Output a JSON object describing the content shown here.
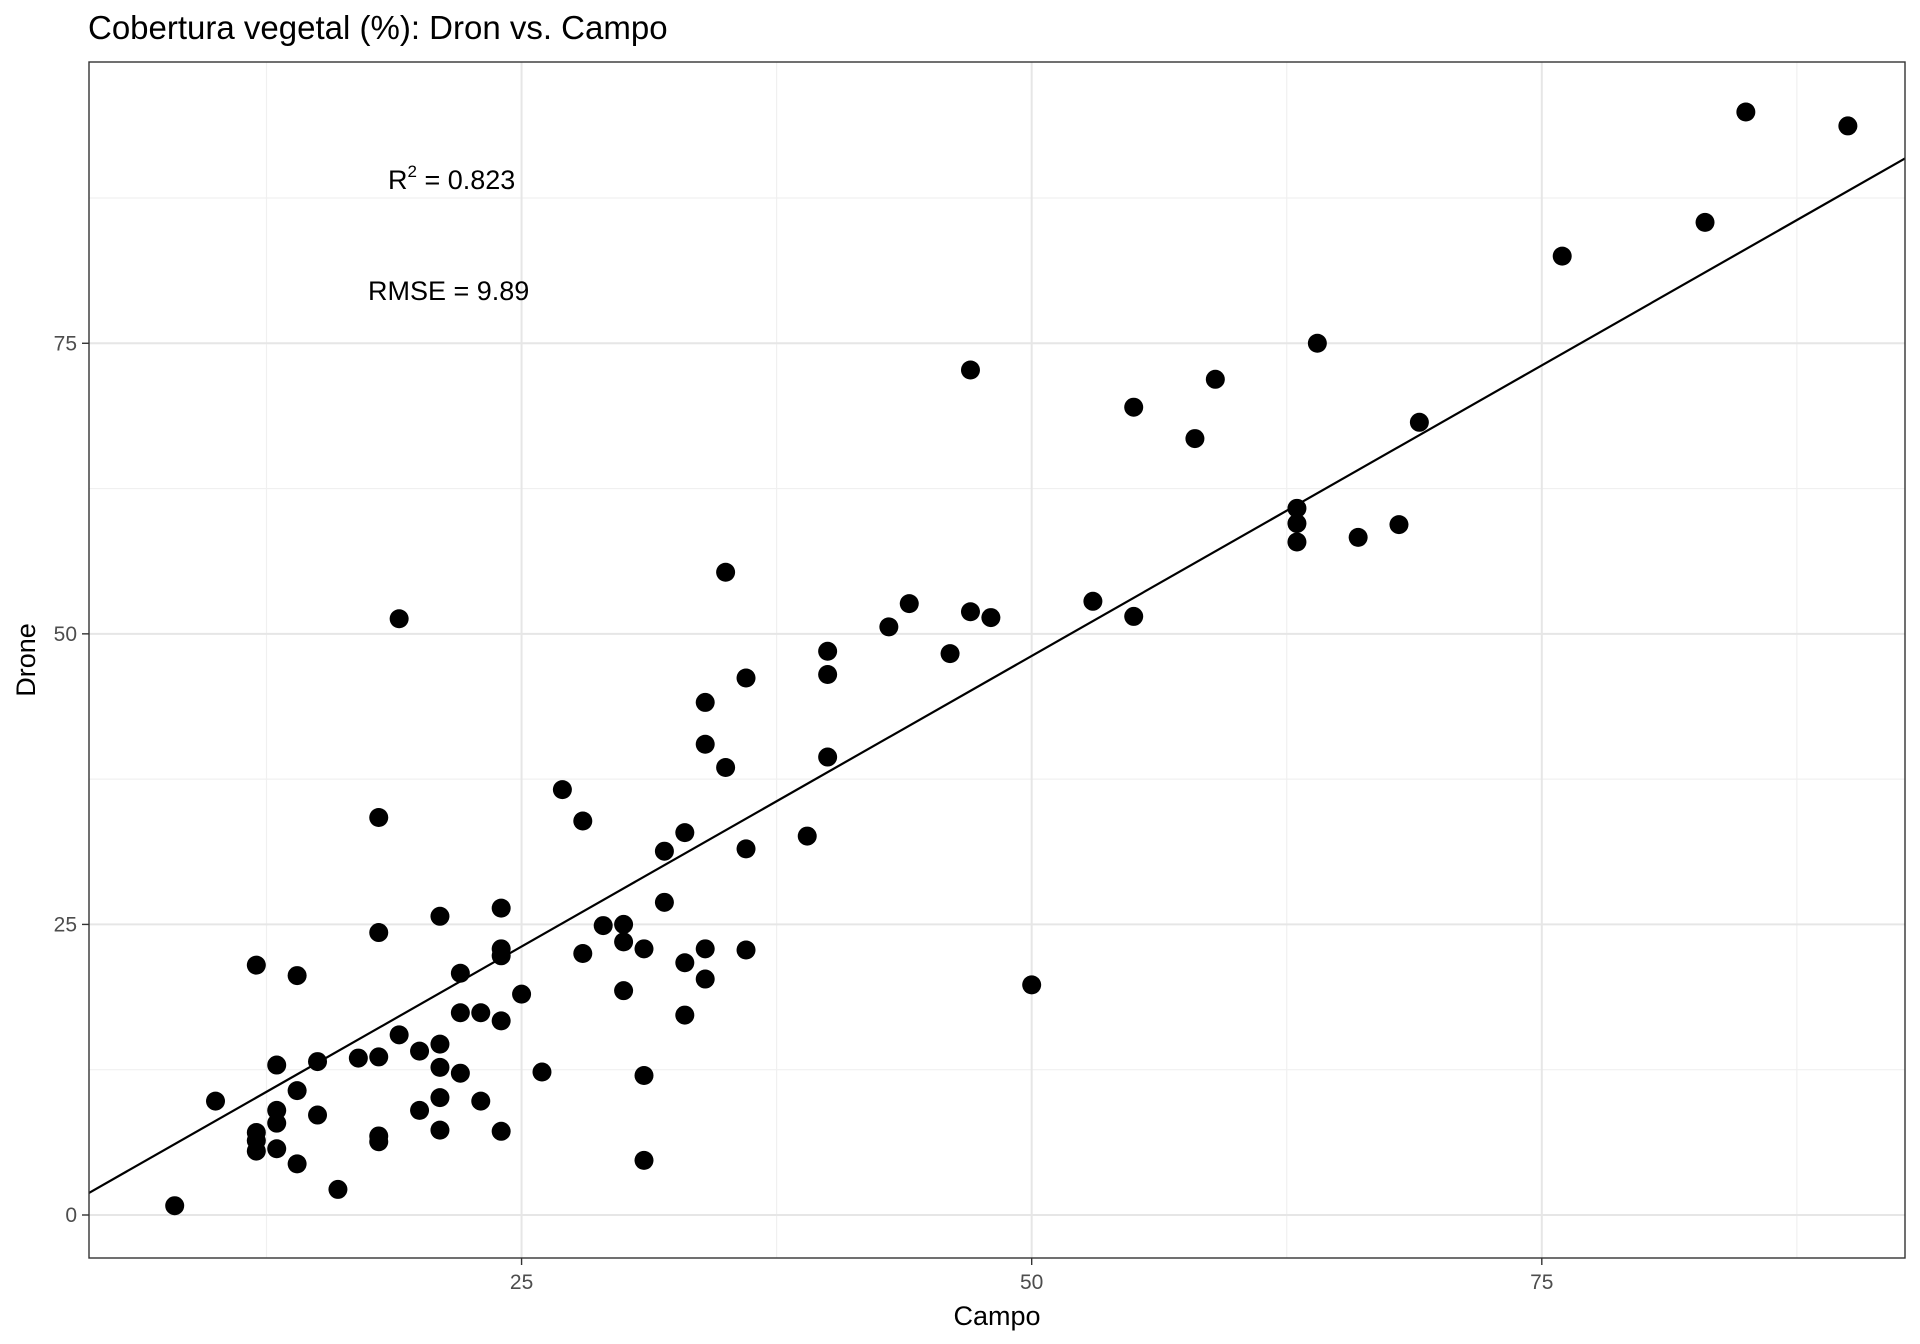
{
  "chart_data": {
    "type": "scatter",
    "title": "Cobertura vegetal (%): Dron vs. Campo",
    "xlabel": "Campo",
    "ylabel": "Drone",
    "xlim": [
      3.8,
      92.8
    ],
    "ylim": [
      -3.7,
      99.2
    ],
    "xticks": [
      25,
      50,
      75
    ],
    "yticks": [
      0,
      25,
      50,
      75
    ],
    "grid": true,
    "point_color": "#000000",
    "annotations": {
      "r2_prefix": "R",
      "r2_sup": "2",
      "r2_value": " = 0.823",
      "rmse": "RMSE = 9.89"
    },
    "fit_line": {
      "x": [
        3.8,
        92.8
      ],
      "y": [
        1.9,
        90.9
      ]
    },
    "points": [
      {
        "x": 8,
        "y": 0.8
      },
      {
        "x": 10,
        "y": 9.8
      },
      {
        "x": 12,
        "y": 21.5
      },
      {
        "x": 12,
        "y": 7.1
      },
      {
        "x": 12,
        "y": 6.4
      },
      {
        "x": 12,
        "y": 5.5
      },
      {
        "x": 13,
        "y": 12.9
      },
      {
        "x": 13,
        "y": 9.0
      },
      {
        "x": 13,
        "y": 7.9
      },
      {
        "x": 13,
        "y": 5.7
      },
      {
        "x": 14,
        "y": 20.6
      },
      {
        "x": 14,
        "y": 10.7
      },
      {
        "x": 14,
        "y": 4.4
      },
      {
        "x": 15,
        "y": 13.2
      },
      {
        "x": 15,
        "y": 8.6
      },
      {
        "x": 16,
        "y": 2.2
      },
      {
        "x": 17,
        "y": 13.5
      },
      {
        "x": 18,
        "y": 34.2
      },
      {
        "x": 18,
        "y": 24.3
      },
      {
        "x": 18,
        "y": 13.6
      },
      {
        "x": 18,
        "y": 6.8
      },
      {
        "x": 18,
        "y": 6.3
      },
      {
        "x": 19,
        "y": 51.3
      },
      {
        "x": 19,
        "y": 15.5
      },
      {
        "x": 20,
        "y": 14.1
      },
      {
        "x": 20,
        "y": 9.0
      },
      {
        "x": 21,
        "y": 25.7
      },
      {
        "x": 21,
        "y": 14.7
      },
      {
        "x": 21,
        "y": 12.7
      },
      {
        "x": 21,
        "y": 10.1
      },
      {
        "x": 21,
        "y": 7.3
      },
      {
        "x": 22,
        "y": 20.8
      },
      {
        "x": 22,
        "y": 17.4
      },
      {
        "x": 22,
        "y": 12.2
      },
      {
        "x": 23,
        "y": 17.4
      },
      {
        "x": 23,
        "y": 9.8
      },
      {
        "x": 24,
        "y": 26.4
      },
      {
        "x": 24,
        "y": 22.9
      },
      {
        "x": 24,
        "y": 22.3
      },
      {
        "x": 24,
        "y": 16.7
      },
      {
        "x": 24,
        "y": 7.2
      },
      {
        "x": 25,
        "y": 19.0
      },
      {
        "x": 26,
        "y": 12.3
      },
      {
        "x": 27,
        "y": 36.6
      },
      {
        "x": 28,
        "y": 33.9
      },
      {
        "x": 28,
        "y": 22.5
      },
      {
        "x": 29,
        "y": 24.9
      },
      {
        "x": 30,
        "y": 25.0
      },
      {
        "x": 30,
        "y": 23.5
      },
      {
        "x": 30,
        "y": 19.3
      },
      {
        "x": 31,
        "y": 22.9
      },
      {
        "x": 31,
        "y": 12.0
      },
      {
        "x": 31,
        "y": 4.7
      },
      {
        "x": 32,
        "y": 31.3
      },
      {
        "x": 32,
        "y": 26.9
      },
      {
        "x": 33,
        "y": 32.9
      },
      {
        "x": 33,
        "y": 21.7
      },
      {
        "x": 33,
        "y": 17.2
      },
      {
        "x": 34,
        "y": 44.1
      },
      {
        "x": 34,
        "y": 40.5
      },
      {
        "x": 34,
        "y": 22.9
      },
      {
        "x": 34,
        "y": 20.3
      },
      {
        "x": 35,
        "y": 55.3
      },
      {
        "x": 35,
        "y": 38.5
      },
      {
        "x": 36,
        "y": 46.2
      },
      {
        "x": 36,
        "y": 31.5
      },
      {
        "x": 36,
        "y": 22.8
      },
      {
        "x": 39,
        "y": 32.6
      },
      {
        "x": 40,
        "y": 48.5
      },
      {
        "x": 40,
        "y": 46.5
      },
      {
        "x": 40,
        "y": 39.4
      },
      {
        "x": 43,
        "y": 50.6
      },
      {
        "x": 44,
        "y": 52.6
      },
      {
        "x": 46,
        "y": 48.3
      },
      {
        "x": 47,
        "y": 72.7
      },
      {
        "x": 47,
        "y": 51.9
      },
      {
        "x": 48,
        "y": 51.4
      },
      {
        "x": 50,
        "y": 19.8
      },
      {
        "x": 53,
        "y": 52.8
      },
      {
        "x": 55,
        "y": 69.5
      },
      {
        "x": 55,
        "y": 51.5
      },
      {
        "x": 58,
        "y": 66.8
      },
      {
        "x": 59,
        "y": 71.9
      },
      {
        "x": 63,
        "y": 60.8
      },
      {
        "x": 63,
        "y": 59.5
      },
      {
        "x": 63,
        "y": 57.9
      },
      {
        "x": 64,
        "y": 75.0
      },
      {
        "x": 66,
        "y": 58.3
      },
      {
        "x": 68,
        "y": 59.4
      },
      {
        "x": 69,
        "y": 68.2
      },
      {
        "x": 76,
        "y": 82.5
      },
      {
        "x": 83,
        "y": 85.4
      },
      {
        "x": 85,
        "y": 94.9
      },
      {
        "x": 90,
        "y": 93.7
      }
    ]
  }
}
